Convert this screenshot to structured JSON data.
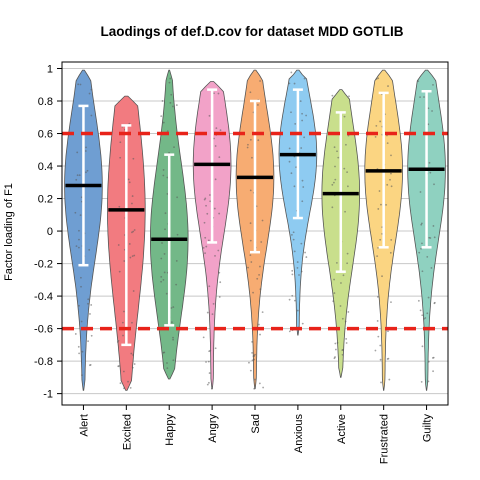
{
  "chart_data": {
    "type": "violin",
    "title": "Laodings of def.D.cov for dataset MDD GOTLIB",
    "xlabel": "",
    "ylabel": "Factor loading of F1",
    "ylim": [
      -1.07,
      1.04
    ],
    "yticks": [
      1,
      0.8,
      0.6,
      0.4,
      0.2,
      0,
      -0.2,
      -0.4,
      -0.6,
      -0.8,
      -1
    ],
    "ytick_labels": [
      "1",
      "0.8",
      "0.6",
      "0.4",
      "0.2",
      "0",
      "-0.2",
      "-0.4",
      "-0.6",
      "-0.8",
      "-1"
    ],
    "grid": true,
    "reference_lines": [
      0.6,
      -0.6
    ],
    "reference_line_color": "#e8231a",
    "categories": [
      "Alert",
      "Excited",
      "Happy",
      "Angry",
      "Sad",
      "Anxious",
      "Active",
      "Frustrated",
      "Guilty"
    ],
    "colors": [
      "#6f9ed2",
      "#f27b80",
      "#73b888",
      "#f2a2c8",
      "#f7ac72",
      "#8ecbf1",
      "#c9df8c",
      "#fbd582",
      "#8fd1c0"
    ],
    "medians": [
      0.28,
      0.13,
      -0.05,
      0.41,
      0.33,
      0.47,
      0.23,
      0.37,
      0.38
    ],
    "whiskers": [
      [
        -0.21,
        0.77
      ],
      [
        -0.7,
        0.65
      ],
      [
        -0.58,
        0.47
      ],
      [
        -0.07,
        0.87
      ],
      [
        -0.13,
        0.8
      ],
      [
        0.08,
        0.87
      ],
      [
        -0.25,
        0.73
      ],
      [
        -0.1,
        0.85
      ],
      [
        -0.1,
        0.86
      ]
    ],
    "ranges": [
      [
        -0.98,
        0.99
      ],
      [
        -0.98,
        0.83
      ],
      [
        -0.91,
        0.99
      ],
      [
        -0.97,
        0.92
      ],
      [
        -0.97,
        0.99
      ],
      [
        -0.64,
        0.99
      ],
      [
        -0.9,
        0.87
      ],
      [
        -0.98,
        0.99
      ],
      [
        -0.98,
        0.99
      ]
    ]
  }
}
